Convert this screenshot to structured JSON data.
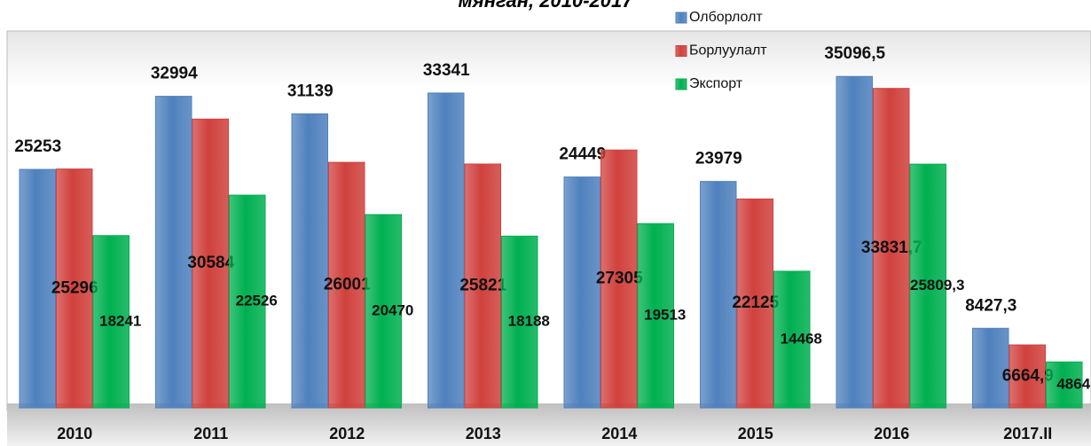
{
  "chart_data": {
    "type": "bar",
    "title": "мянган, 2010-2017",
    "categories": [
      "2010",
      "2011",
      "2012",
      "2013",
      "2014",
      "2015",
      "2016",
      "2017.II"
    ],
    "series": [
      {
        "name": "Олборлолт",
        "color": "#4f81bd",
        "values": [
          25253,
          32994,
          31139,
          33341,
          24449,
          23979,
          35096.5,
          8427.3
        ],
        "value_labels": [
          "25253",
          "32994",
          "31139",
          "33341",
          "24449",
          "23979",
          "35096,5",
          "8427,3"
        ]
      },
      {
        "name": "Борлуулалт",
        "color": "#d0413d",
        "values": [
          25296,
          30584,
          26001,
          25821,
          27305,
          22125,
          33831.7,
          6664.9
        ],
        "value_labels": [
          "25296",
          "30584",
          "26001",
          "25821",
          "27305",
          "22125",
          "33831,7",
          "6664,9"
        ]
      },
      {
        "name": "Экспорт",
        "color": "#00b050",
        "values": [
          18241,
          22526,
          20470,
          18188,
          19513,
          14468,
          25809.3,
          4864
        ],
        "value_labels": [
          "18241",
          "22526",
          "20470",
          "18188",
          "19513",
          "14468",
          "25809,3",
          "4864"
        ]
      }
    ],
    "ylim": [
      0,
      40000
    ]
  }
}
